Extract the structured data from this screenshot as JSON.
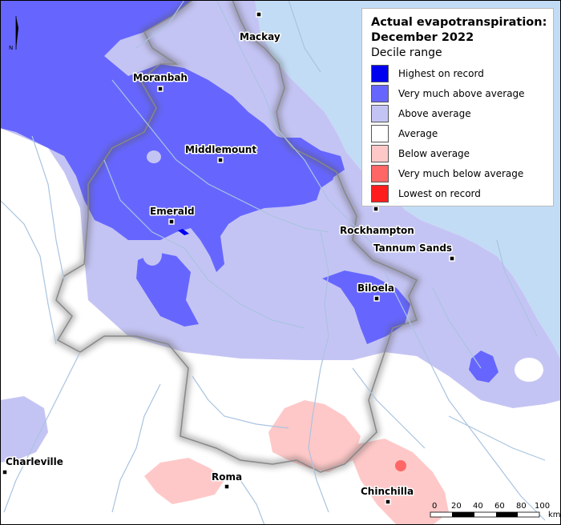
{
  "legend": {
    "title_line1": "Actual evapotranspiration:",
    "title_line2": "December 2022",
    "subtitle": "Decile range",
    "items": [
      {
        "label": "Highest on record",
        "color": "#0000f0"
      },
      {
        "label": "Very much above average",
        "color": "#6666ff"
      },
      {
        "label": "Above average",
        "color": "#c4c4f4"
      },
      {
        "label": "Average",
        "color": "#ffffff"
      },
      {
        "label": "Below average",
        "color": "#ffc8c8"
      },
      {
        "label": "Very much below average",
        "color": "#ff6666"
      },
      {
        "label": "Lowest on record",
        "color": "#ff1c1c"
      }
    ]
  },
  "towns": {
    "mackay": "Mackay",
    "moranbah": "Moranbah",
    "middlemount": "Middlemount",
    "emerald": "Emerald",
    "rockhampton": "Rockhampton",
    "tannum_sands": "Tannum Sands",
    "biloela": "Biloela",
    "charleville": "Charleville",
    "roma": "Roma",
    "chinchilla": "Chinchilla"
  },
  "scale_bar": {
    "ticks": [
      "0",
      "20",
      "40",
      "60",
      "80",
      "100"
    ],
    "unit": "km"
  },
  "north_arrow": {
    "label": "N"
  },
  "colors": {
    "sea": "#c3dcf5",
    "river": "#a9c4e0",
    "catchment_border": "#888888"
  }
}
